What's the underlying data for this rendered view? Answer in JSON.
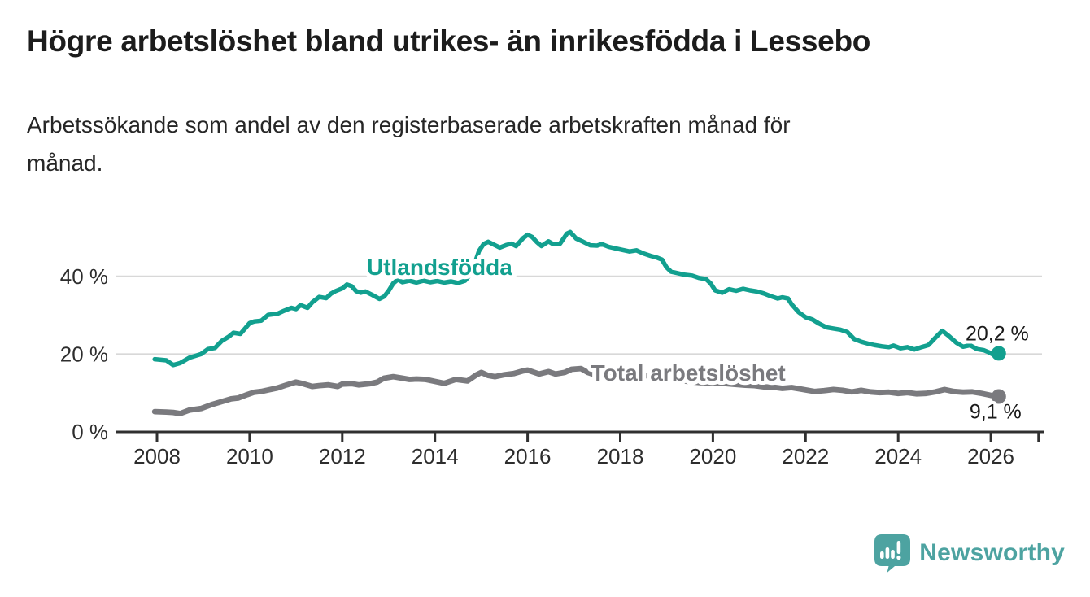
{
  "header": {
    "title": "Högre arbetslöshet bland utrikes- än inrikesfödda i Lessebo",
    "subtitle_lines": [
      "Arbetssökande som andel av den registerbaserade arbetskraften månad för",
      "månad."
    ]
  },
  "footer": {
    "brand": "Newsworthy",
    "logo_icon": "speech-bubble-bar-chart-icon"
  },
  "colors": {
    "foreign_born_series": "#12a08f",
    "total_series": "#7a7a7e",
    "gridline": "#d8d8d8",
    "axis": "#303030",
    "title_text": "#1c1c1c",
    "axis_text": "#2d2d2d",
    "value_label_text": "#1a1a1a",
    "logo_teal": "#4da3a1",
    "background": "#ffffff"
  },
  "chart_data": {
    "type": "line",
    "title": "Högre arbetslöshet bland utrikes- än inrikesfödda i Lessebo",
    "xlabel": "",
    "ylabel": "Arbetssökande som andel av den registerbaserade arbetskraften",
    "unit": "%",
    "x_range": [
      2007.9,
      2027.1
    ],
    "ylim": [
      0,
      53
    ],
    "grid": "horizontal",
    "legend_position": "inline-labels",
    "y_ticks": [
      {
        "value": 0,
        "label": "0 %"
      },
      {
        "value": 20,
        "label": "20 %"
      },
      {
        "value": 40,
        "label": "40 %"
      }
    ],
    "x_ticks": [
      {
        "year": 2008,
        "label": "2008"
      },
      {
        "year": 2010,
        "label": "2010"
      },
      {
        "year": 2012,
        "label": "2012"
      },
      {
        "year": 2014,
        "label": "2014"
      },
      {
        "year": 2016,
        "label": "2016"
      },
      {
        "year": 2018,
        "label": "2018"
      },
      {
        "year": 2020,
        "label": "2020"
      },
      {
        "year": 2022,
        "label": "2022"
      },
      {
        "year": 2024,
        "label": "2024"
      },
      {
        "year": 2026,
        "label": "2026"
      },
      {
        "year": 2027.03,
        "label": ""
      }
    ],
    "series": [
      {
        "id": "utlandsfodda",
        "name": "Utlandsfödda",
        "color": "#12a08f",
        "end_label": "20,2 %",
        "end_value": 20.2,
        "label_anchor": {
          "year": 2014.1,
          "value": 42.5
        },
        "points": [
          [
            2007.95,
            18.7
          ],
          [
            2008.2,
            18.4
          ],
          [
            2008.35,
            17.2
          ],
          [
            2008.5,
            17.7
          ],
          [
            2008.7,
            19.1
          ],
          [
            2008.95,
            20.0
          ],
          [
            2009.1,
            21.3
          ],
          [
            2009.25,
            21.6
          ],
          [
            2009.4,
            23.4
          ],
          [
            2009.55,
            24.5
          ],
          [
            2009.65,
            25.5
          ],
          [
            2009.8,
            25.2
          ],
          [
            2009.9,
            26.6
          ],
          [
            2010.0,
            28.0
          ],
          [
            2010.1,
            28.4
          ],
          [
            2010.25,
            28.6
          ],
          [
            2010.4,
            30.1
          ],
          [
            2010.6,
            30.4
          ],
          [
            2010.75,
            31.2
          ],
          [
            2010.9,
            31.9
          ],
          [
            2011.0,
            31.6
          ],
          [
            2011.1,
            32.6
          ],
          [
            2011.25,
            31.9
          ],
          [
            2011.35,
            33.3
          ],
          [
            2011.5,
            34.7
          ],
          [
            2011.65,
            34.4
          ],
          [
            2011.75,
            35.5
          ],
          [
            2011.85,
            36.2
          ],
          [
            2012.0,
            36.9
          ],
          [
            2012.1,
            37.9
          ],
          [
            2012.2,
            37.5
          ],
          [
            2012.3,
            36.2
          ],
          [
            2012.4,
            35.8
          ],
          [
            2012.5,
            36.1
          ],
          [
            2012.65,
            35.2
          ],
          [
            2012.8,
            34.2
          ],
          [
            2012.9,
            34.8
          ],
          [
            2013.0,
            36.3
          ],
          [
            2013.1,
            38.2
          ],
          [
            2013.2,
            39.2
          ],
          [
            2013.3,
            38.5
          ],
          [
            2013.45,
            38.9
          ],
          [
            2013.6,
            38.4
          ],
          [
            2013.75,
            38.9
          ],
          [
            2013.9,
            38.5
          ],
          [
            2014.05,
            38.8
          ],
          [
            2014.2,
            38.4
          ],
          [
            2014.35,
            38.7
          ],
          [
            2014.5,
            38.3
          ],
          [
            2014.65,
            38.9
          ],
          [
            2014.75,
            40.3
          ],
          [
            2014.85,
            43.0
          ],
          [
            2014.95,
            46.5
          ],
          [
            2015.05,
            48.3
          ],
          [
            2015.15,
            48.9
          ],
          [
            2015.3,
            48.0
          ],
          [
            2015.4,
            47.4
          ],
          [
            2015.55,
            48.1
          ],
          [
            2015.65,
            48.4
          ],
          [
            2015.75,
            47.8
          ],
          [
            2015.9,
            49.8
          ],
          [
            2016.0,
            50.7
          ],
          [
            2016.1,
            50.1
          ],
          [
            2016.2,
            48.8
          ],
          [
            2016.3,
            47.8
          ],
          [
            2016.45,
            49.0
          ],
          [
            2016.55,
            48.3
          ],
          [
            2016.7,
            48.4
          ],
          [
            2016.85,
            51.0
          ],
          [
            2016.92,
            51.4
          ],
          [
            2017.05,
            49.7
          ],
          [
            2017.2,
            48.9
          ],
          [
            2017.35,
            48.0
          ],
          [
            2017.5,
            47.9
          ],
          [
            2017.6,
            48.3
          ],
          [
            2017.75,
            47.6
          ],
          [
            2017.9,
            47.2
          ],
          [
            2018.05,
            46.8
          ],
          [
            2018.2,
            46.4
          ],
          [
            2018.35,
            46.7
          ],
          [
            2018.5,
            45.9
          ],
          [
            2018.65,
            45.3
          ],
          [
            2018.8,
            44.8
          ],
          [
            2018.9,
            44.3
          ],
          [
            2019.0,
            42.3
          ],
          [
            2019.1,
            41.2
          ],
          [
            2019.25,
            40.8
          ],
          [
            2019.4,
            40.4
          ],
          [
            2019.55,
            40.2
          ],
          [
            2019.7,
            39.6
          ],
          [
            2019.85,
            39.3
          ],
          [
            2019.95,
            38.2
          ],
          [
            2020.05,
            36.4
          ],
          [
            2020.2,
            35.8
          ],
          [
            2020.35,
            36.7
          ],
          [
            2020.5,
            36.3
          ],
          [
            2020.65,
            36.8
          ],
          [
            2020.8,
            36.4
          ],
          [
            2020.95,
            36.1
          ],
          [
            2021.1,
            35.6
          ],
          [
            2021.25,
            34.9
          ],
          [
            2021.4,
            34.3
          ],
          [
            2021.5,
            34.6
          ],
          [
            2021.62,
            34.3
          ],
          [
            2021.7,
            32.8
          ],
          [
            2021.85,
            30.8
          ],
          [
            2022.0,
            29.5
          ],
          [
            2022.15,
            28.9
          ],
          [
            2022.3,
            27.8
          ],
          [
            2022.45,
            26.9
          ],
          [
            2022.6,
            26.6
          ],
          [
            2022.75,
            26.3
          ],
          [
            2022.9,
            25.7
          ],
          [
            2023.05,
            23.9
          ],
          [
            2023.2,
            23.2
          ],
          [
            2023.35,
            22.7
          ],
          [
            2023.5,
            22.3
          ],
          [
            2023.65,
            22.0
          ],
          [
            2023.8,
            21.8
          ],
          [
            2023.9,
            22.2
          ],
          [
            2024.05,
            21.5
          ],
          [
            2024.2,
            21.8
          ],
          [
            2024.35,
            21.2
          ],
          [
            2024.5,
            21.8
          ],
          [
            2024.65,
            22.3
          ],
          [
            2024.8,
            24.2
          ],
          [
            2024.95,
            26.0
          ],
          [
            2025.1,
            24.6
          ],
          [
            2025.25,
            23.0
          ],
          [
            2025.4,
            21.9
          ],
          [
            2025.55,
            22.3
          ],
          [
            2025.7,
            21.3
          ],
          [
            2025.85,
            21.0
          ],
          [
            2025.95,
            20.5
          ],
          [
            2026.05,
            19.9
          ],
          [
            2026.17,
            20.2
          ]
        ]
      },
      {
        "id": "total-arbetsloshet",
        "name": "Total arbetslöshet",
        "color": "#7a7a7e",
        "end_label": "9,1 %",
        "end_value": 9.1,
        "label_anchor": {
          "year": 2019.47,
          "value": 15.3
        },
        "points": [
          [
            2007.95,
            5.2
          ],
          [
            2008.2,
            5.1
          ],
          [
            2008.35,
            5.0
          ],
          [
            2008.5,
            4.7
          ],
          [
            2008.7,
            5.6
          ],
          [
            2008.95,
            6.0
          ],
          [
            2009.2,
            7.1
          ],
          [
            2009.4,
            7.8
          ],
          [
            2009.6,
            8.5
          ],
          [
            2009.75,
            8.7
          ],
          [
            2009.95,
            9.6
          ],
          [
            2010.1,
            10.2
          ],
          [
            2010.25,
            10.4
          ],
          [
            2010.4,
            10.8
          ],
          [
            2010.6,
            11.3
          ],
          [
            2010.8,
            12.1
          ],
          [
            2011.0,
            12.8
          ],
          [
            2011.15,
            12.4
          ],
          [
            2011.35,
            11.7
          ],
          [
            2011.5,
            11.9
          ],
          [
            2011.7,
            12.1
          ],
          [
            2011.9,
            11.7
          ],
          [
            2012.0,
            12.3
          ],
          [
            2012.2,
            12.4
          ],
          [
            2012.35,
            12.1
          ],
          [
            2012.6,
            12.4
          ],
          [
            2012.75,
            12.8
          ],
          [
            2012.9,
            13.8
          ],
          [
            2013.1,
            14.2
          ],
          [
            2013.3,
            13.8
          ],
          [
            2013.45,
            13.5
          ],
          [
            2013.6,
            13.6
          ],
          [
            2013.8,
            13.5
          ],
          [
            2014.0,
            13.0
          ],
          [
            2014.2,
            12.5
          ],
          [
            2014.45,
            13.5
          ],
          [
            2014.7,
            13.1
          ],
          [
            2014.9,
            14.7
          ],
          [
            2015.0,
            15.3
          ],
          [
            2015.15,
            14.5
          ],
          [
            2015.3,
            14.2
          ],
          [
            2015.5,
            14.7
          ],
          [
            2015.7,
            15.0
          ],
          [
            2015.9,
            15.7
          ],
          [
            2016.0,
            15.9
          ],
          [
            2016.25,
            14.9
          ],
          [
            2016.45,
            15.5
          ],
          [
            2016.6,
            14.9
          ],
          [
            2016.8,
            15.3
          ],
          [
            2016.95,
            16.1
          ],
          [
            2017.15,
            16.3
          ],
          [
            2017.3,
            15.3
          ],
          [
            2017.5,
            14.5
          ],
          [
            2017.6,
            14.2
          ],
          [
            2017.8,
            14.6
          ],
          [
            2018.0,
            14.9
          ],
          [
            2018.2,
            15.1
          ],
          [
            2018.4,
            14.8
          ],
          [
            2018.6,
            14.4
          ],
          [
            2018.8,
            14.0
          ],
          [
            2019.0,
            13.6
          ],
          [
            2019.3,
            13.2
          ],
          [
            2019.6,
            12.8
          ],
          [
            2019.9,
            12.5
          ],
          [
            2020.1,
            12.6
          ],
          [
            2020.4,
            12.3
          ],
          [
            2020.7,
            12.0
          ],
          [
            2020.9,
            11.9
          ],
          [
            2021.1,
            11.6
          ],
          [
            2021.3,
            11.5
          ],
          [
            2021.5,
            11.2
          ],
          [
            2021.7,
            11.4
          ],
          [
            2021.9,
            11.0
          ],
          [
            2022.0,
            10.8
          ],
          [
            2022.2,
            10.4
          ],
          [
            2022.4,
            10.6
          ],
          [
            2022.6,
            10.9
          ],
          [
            2022.8,
            10.7
          ],
          [
            2023.0,
            10.3
          ],
          [
            2023.2,
            10.7
          ],
          [
            2023.4,
            10.3
          ],
          [
            2023.6,
            10.1
          ],
          [
            2023.8,
            10.2
          ],
          [
            2024.0,
            9.9
          ],
          [
            2024.2,
            10.1
          ],
          [
            2024.4,
            9.8
          ],
          [
            2024.6,
            9.9
          ],
          [
            2024.8,
            10.3
          ],
          [
            2025.0,
            10.9
          ],
          [
            2025.2,
            10.4
          ],
          [
            2025.4,
            10.2
          ],
          [
            2025.6,
            10.3
          ],
          [
            2025.8,
            9.9
          ],
          [
            2026.0,
            9.4
          ],
          [
            2026.17,
            9.1
          ]
        ]
      }
    ]
  }
}
